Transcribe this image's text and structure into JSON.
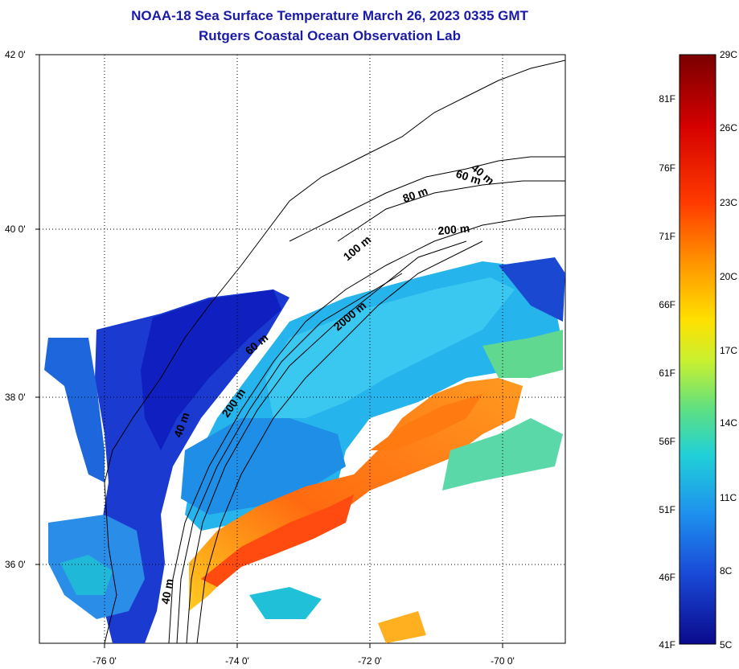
{
  "title": {
    "line1": "NOAA-18 Sea Surface Temperature March 26, 2023 0335 GMT",
    "line2": "Rutgers Coastal Ocean Observation Lab"
  },
  "map": {
    "lat_labels": [
      "42 0'",
      "40 0'",
      "38 0'",
      "36 0'"
    ],
    "lon_labels": [
      "-76 0'",
      "-74 0'",
      "-72 0'",
      "-70 0'"
    ],
    "depth_labels": [
      "40 m",
      "60 m",
      "80 m",
      "200 m",
      "100 m",
      "2000 m",
      "60 m",
      "200 m",
      "40 m",
      "40 m"
    ]
  },
  "colorbar": {
    "fahrenheit": [
      "81F",
      "76F",
      "71F",
      "66F",
      "61F",
      "56F",
      "51F",
      "46F",
      "41F"
    ],
    "celsius": [
      "29C",
      "26C",
      "23C",
      "20C",
      "17C",
      "14C",
      "11C",
      "8C",
      "5C"
    ],
    "colors": [
      "#7a0000",
      "#d40000",
      "#ff3a00",
      "#ff8a00",
      "#ffd200",
      "#d8f020",
      "#7de86a",
      "#22d6c8",
      "#1fa0ee",
      "#1e6ee0",
      "#1530c8",
      "#0a0a8c"
    ]
  }
}
